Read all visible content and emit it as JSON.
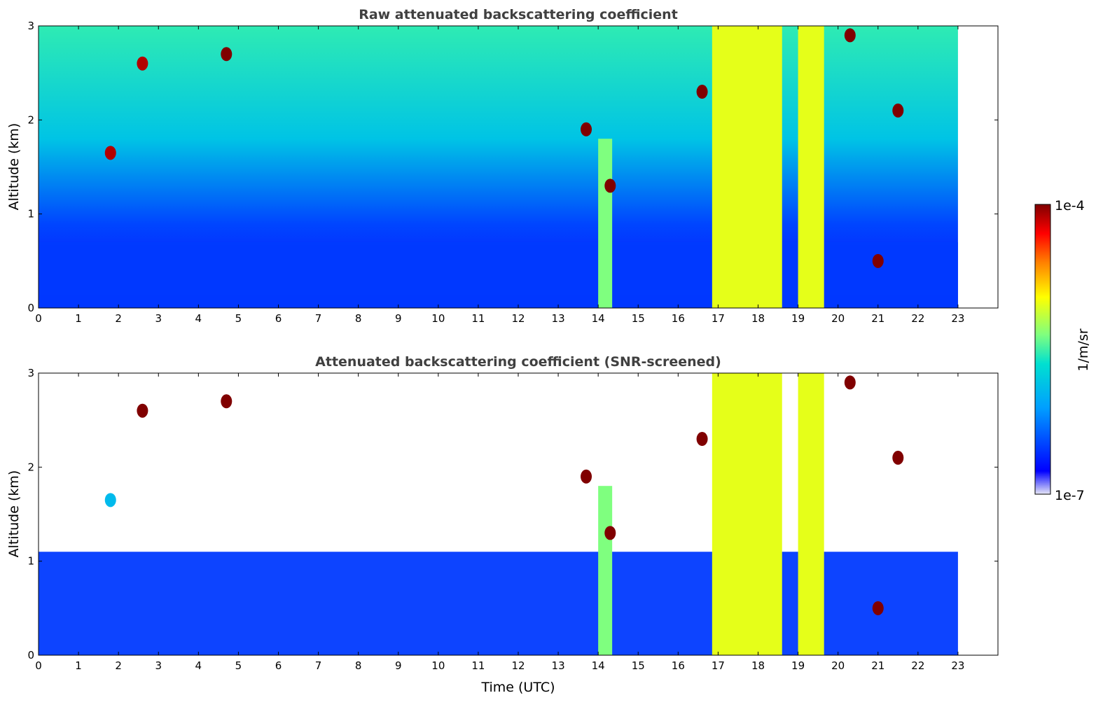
{
  "chart_data": [
    {
      "type": "heatmap",
      "title": "Raw attenuated backscattering coefficient",
      "xlabel": "",
      "ylabel": "Altitude (km)",
      "xlim": [
        0,
        24
      ],
      "ylim": [
        0,
        3
      ],
      "xticks": [
        "0",
        "1",
        "2",
        "3",
        "4",
        "5",
        "6",
        "7",
        "8",
        "9",
        "10",
        "11",
        "12",
        "13",
        "14",
        "15",
        "16",
        "17",
        "18",
        "19",
        "20",
        "21",
        "22",
        "23"
      ],
      "yticks": [
        "0",
        "1",
        "2",
        "3"
      ],
      "data_end_hour": 23,
      "color_scale": "log",
      "features": [
        {
          "kind": "boundary_layer",
          "from": 0,
          "to": 23,
          "top_km": 0.7
        },
        {
          "kind": "column",
          "from": 14.0,
          "to": 14.35,
          "top_km": 1.8,
          "level": 0.5
        },
        {
          "kind": "column",
          "from": 16.85,
          "to": 18.6,
          "top_km": 3,
          "level": 0.6
        },
        {
          "kind": "column",
          "from": 19.0,
          "to": 19.65,
          "top_km": 3,
          "level": 0.6
        },
        {
          "kind": "cloud",
          "hour": 1.8,
          "alt_km": 1.65,
          "level": 0.95
        },
        {
          "kind": "cloud",
          "hour": 2.6,
          "alt_km": 2.6,
          "level": 0.95
        },
        {
          "kind": "cloud",
          "hour": 4.7,
          "alt_km": 2.7,
          "level": 1.0
        },
        {
          "kind": "cloud",
          "hour": 13.7,
          "alt_km": 1.9,
          "level": 1.0
        },
        {
          "kind": "cloud",
          "hour": 14.3,
          "alt_km": 1.3,
          "level": 1.0
        },
        {
          "kind": "cloud",
          "hour": 16.6,
          "alt_km": 2.3,
          "level": 1.0
        },
        {
          "kind": "cloud",
          "hour": 20.3,
          "alt_km": 2.9,
          "level": 1.0
        },
        {
          "kind": "cloud",
          "hour": 21.0,
          "alt_km": 0.5,
          "level": 1.0
        },
        {
          "kind": "cloud",
          "hour": 21.5,
          "alt_km": 2.1,
          "level": 1.0
        }
      ]
    },
    {
      "type": "heatmap",
      "title": "Attenuated backscattering coefficient (SNR-screened)",
      "xlabel": "Time (UTC)",
      "ylabel": "Altitude (km)",
      "xlim": [
        0,
        24
      ],
      "ylim": [
        0,
        3
      ],
      "xticks": [
        "0",
        "1",
        "2",
        "3",
        "4",
        "5",
        "6",
        "7",
        "8",
        "9",
        "10",
        "11",
        "12",
        "13",
        "14",
        "15",
        "16",
        "17",
        "18",
        "19",
        "20",
        "21",
        "22",
        "23"
      ],
      "yticks": [
        "0",
        "1",
        "2",
        "3"
      ],
      "data_end_hour": 23,
      "color_scale": "log",
      "features": [
        {
          "kind": "boundary_layer",
          "from": 0,
          "to": 23,
          "top_km": 1.1
        },
        {
          "kind": "column",
          "from": 14.0,
          "to": 14.35,
          "top_km": 1.8,
          "level": 0.5
        },
        {
          "kind": "column",
          "from": 16.85,
          "to": 18.6,
          "top_km": 3,
          "level": 0.6
        },
        {
          "kind": "column",
          "from": 19.0,
          "to": 19.65,
          "top_km": 3,
          "level": 0.6
        },
        {
          "kind": "cloud",
          "hour": 1.8,
          "alt_km": 1.65,
          "level": 0.3
        },
        {
          "kind": "cloud",
          "hour": 2.6,
          "alt_km": 2.6,
          "level": 1.0
        },
        {
          "kind": "cloud",
          "hour": 4.7,
          "alt_km": 2.7,
          "level": 1.0
        },
        {
          "kind": "cloud",
          "hour": 13.7,
          "alt_km": 1.9,
          "level": 1.0
        },
        {
          "kind": "cloud",
          "hour": 14.3,
          "alt_km": 1.3,
          "level": 1.0
        },
        {
          "kind": "cloud",
          "hour": 16.6,
          "alt_km": 2.3,
          "level": 1.0
        },
        {
          "kind": "cloud",
          "hour": 20.3,
          "alt_km": 2.9,
          "level": 1.0
        },
        {
          "kind": "cloud",
          "hour": 21.0,
          "alt_km": 0.5,
          "level": 1.0
        },
        {
          "kind": "cloud",
          "hour": 21.5,
          "alt_km": 2.1,
          "level": 1.0
        }
      ]
    }
  ],
  "colorbar": {
    "label": "1/m/sr",
    "max_label": "1e-4",
    "min_label": "1e-7",
    "colormap": [
      "#e6e6f5",
      "#0000ff",
      "#00a0ff",
      "#00e0d0",
      "#7fff7f",
      "#ffff00",
      "#ff8000",
      "#ff0000",
      "#800000"
    ]
  }
}
